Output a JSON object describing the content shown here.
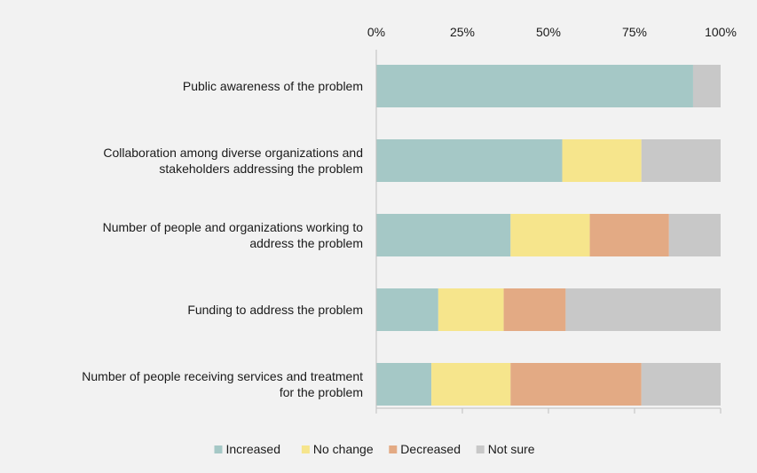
{
  "chart_data": {
    "type": "bar",
    "orientation": "horizontal",
    "stacked": "percent",
    "categories": [
      [
        "Public awareness of the problem"
      ],
      [
        "Collaboration among diverse organizations and",
        "stakeholders addressing the problem"
      ],
      [
        "Number of people and organizations working to",
        "address the problem"
      ],
      [
        "Funding to address the problem"
      ],
      [
        "Number of people receiving services and treatment",
        "for the problem"
      ]
    ],
    "series": [
      {
        "name": "Increased",
        "color": "#a5c8c6",
        "values": [
          92,
          54,
          39,
          18,
          16
        ]
      },
      {
        "name": "No change",
        "color": "#f6e58c",
        "values": [
          0,
          23,
          23,
          19,
          23
        ]
      },
      {
        "name": "Decreased",
        "color": "#e3aa84",
        "values": [
          0,
          0,
          23,
          18,
          38
        ]
      },
      {
        "name": "Not sure",
        "color": "#c8c8c8",
        "values": [
          8,
          23,
          15,
          45,
          23
        ]
      }
    ],
    "x_ticks": [
      "0%",
      "25%",
      "50%",
      "75%",
      "100%"
    ],
    "xlim": [
      0,
      100
    ],
    "xaxis_position": "top",
    "legend_position": "bottom",
    "grid": false
  }
}
